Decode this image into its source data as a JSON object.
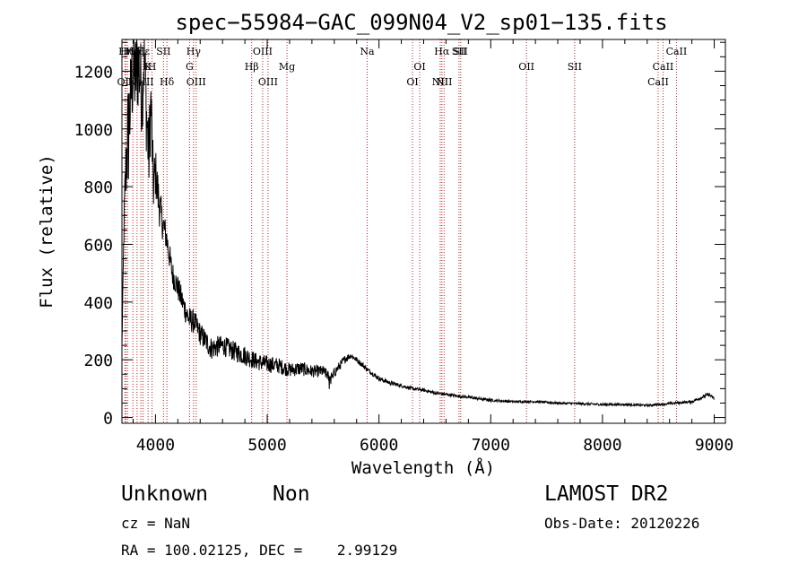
{
  "chart_data": {
    "type": "line",
    "title": "spec−55984−GAC_099N04_V2_sp01−135.fits",
    "xlabel": "Wavelength (Å)",
    "ylabel": "Flux (relative)",
    "xlim": [
      3700,
      9100
    ],
    "ylim": [
      -20,
      1310
    ],
    "x_ticks": [
      4000,
      5000,
      6000,
      7000,
      8000,
      9000
    ],
    "y_ticks": [
      0,
      200,
      400,
      600,
      800,
      1000,
      1200
    ],
    "grid": false,
    "series": [
      {
        "color": "#000000",
        "x": [
          3700,
          3720,
          3740,
          3760,
          3780,
          3800,
          3820,
          3840,
          3860,
          3880,
          3900,
          3920,
          3940,
          3960,
          3980,
          4000,
          4030,
          4060,
          4100,
          4150,
          4200,
          4250,
          4300,
          4350,
          4400,
          4500,
          4600,
          4700,
          4800,
          4900,
          5000,
          5100,
          5200,
          5300,
          5400,
          5500,
          5560,
          5600,
          5700,
          5750,
          5800,
          5900,
          6000,
          6100,
          6200,
          6300,
          6400,
          6500,
          6600,
          6700,
          6800,
          6900,
          7000,
          7200,
          7400,
          7600,
          7800,
          8000,
          8200,
          8400,
          8600,
          8800,
          8950,
          9000
        ],
        "y": [
          250,
          700,
          900,
          1000,
          1120,
          1200,
          1180,
          1230,
          1200,
          1100,
          1260,
          1050,
          900,
          1100,
          800,
          850,
          750,
          680,
          620,
          500,
          450,
          390,
          340,
          330,
          290,
          240,
          250,
          230,
          215,
          195,
          185,
          180,
          165,
          170,
          160,
          160,
          140,
          155,
          205,
          215,
          200,
          165,
          135,
          120,
          110,
          100,
          95,
          85,
          80,
          75,
          70,
          65,
          60,
          55,
          55,
          50,
          48,
          45,
          45,
          42,
          48,
          55,
          80,
          65
        ],
        "noise": [
          0,
          60,
          160,
          220,
          160,
          170,
          160,
          180,
          160,
          140,
          120,
          160,
          140,
          130,
          110,
          90,
          80,
          60,
          50,
          45,
          45,
          45,
          45,
          40,
          40,
          40,
          35,
          35,
          35,
          30,
          30,
          28,
          25,
          25,
          22,
          20,
          18,
          18,
          14,
          10,
          10,
          8,
          8,
          7,
          6,
          6,
          6,
          6,
          5,
          5,
          5,
          5,
          5,
          4,
          4,
          4,
          4,
          4,
          4,
          4,
          4,
          5,
          6,
          5
        ]
      }
    ],
    "lines": [
      {
        "wl": 3727,
        "label": "OII",
        "row": 3
      },
      {
        "wl": 3734,
        "label": "Hη",
        "row": 1
      },
      {
        "wl": 3750,
        "label": "Hθ",
        "row": 1
      },
      {
        "wl": 3798,
        "label": "Hη",
        "row": 1
      },
      {
        "wl": 3835,
        "label": "Hζ",
        "row": 1
      },
      {
        "wl": 3869,
        "label": "NeIII",
        "row": 3
      },
      {
        "wl": 3889,
        "label": "Hε",
        "row": 1
      },
      {
        "wl": 3934,
        "label": "K",
        "row": 2
      },
      {
        "wl": 3969,
        "label": "H",
        "row": 2
      },
      {
        "wl": 4072,
        "label": "SII",
        "row": 1
      },
      {
        "wl": 4102,
        "label": "Hδ",
        "row": 3
      },
      {
        "wl": 4305,
        "label": "G",
        "row": 2
      },
      {
        "wl": 4341,
        "label": "Hγ",
        "row": 1
      },
      {
        "wl": 4364,
        "label": "OIII",
        "row": 3
      },
      {
        "wl": 4861,
        "label": "Hβ",
        "row": 2
      },
      {
        "wl": 4959,
        "label": "OIII",
        "row": 1
      },
      {
        "wl": 5007,
        "label": "OIII",
        "row": 3
      },
      {
        "wl": 5177,
        "label": "Mg",
        "row": 2
      },
      {
        "wl": 5894,
        "label": "Na",
        "row": 1
      },
      {
        "wl": 6300,
        "label": "OI",
        "row": 3
      },
      {
        "wl": 6364,
        "label": "OI",
        "row": 2
      },
      {
        "wl": 6548,
        "label": "NII",
        "row": 3
      },
      {
        "wl": 6563,
        "label": "Hα",
        "row": 1
      },
      {
        "wl": 6583,
        "label": "NII",
        "row": 3
      },
      {
        "wl": 6716,
        "label": "SII",
        "row": 1
      },
      {
        "wl": 6731,
        "label": "SII",
        "row": 1
      },
      {
        "wl": 7320,
        "label": "OII",
        "row": 2
      },
      {
        "wl": 7751,
        "label": "SII",
        "row": 2
      },
      {
        "wl": 8498,
        "label": "CaII",
        "row": 3
      },
      {
        "wl": 8542,
        "label": "CaII",
        "row": 2
      },
      {
        "wl": 8662,
        "label": "CaII",
        "row": 1
      }
    ],
    "line_color": "#b22222"
  },
  "info": {
    "class": "Unknown",
    "subclass": "Non",
    "survey": "LAMOST DR2",
    "cz": "cz = NaN",
    "obs_date": "Obs-Date: 20120226",
    "coords": "RA = 100.02125, DEC =    2.99129"
  }
}
